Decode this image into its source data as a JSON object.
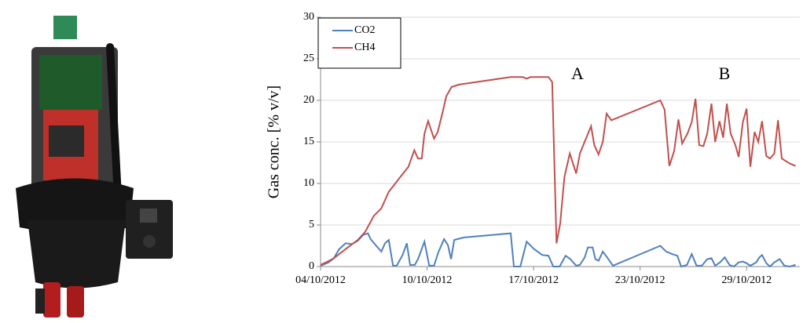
{
  "chart_data": {
    "type": "line",
    "ylabel": "Gas conc.  [% v/v]",
    "annotations": [
      "A",
      "B"
    ],
    "xlim": [
      0,
      90
    ],
    "xticks": [
      {
        "value": 0,
        "label": "04/10/2012"
      },
      {
        "value": 20,
        "label": "10/10/2012"
      },
      {
        "value": 40,
        "label": "17/10/2012"
      },
      {
        "value": 60,
        "label": "23/10/2012"
      },
      {
        "value": 80,
        "label": "29/10/2012"
      }
    ],
    "ylim": [
      0,
      30
    ],
    "yticks": [
      0,
      5,
      10,
      15,
      20,
      25,
      30
    ],
    "grid": true,
    "legend": "top-left",
    "series": [
      {
        "name": "CO2",
        "color": "#4f81bd",
        "x": [
          0,
          1.5,
          2.5,
          3.5,
          4.7,
          5.9,
          7,
          8,
          8.9,
          9.4,
          10.6,
          11.4,
          12.1,
          12.8,
          13.6,
          14.3,
          15.4,
          16.2,
          16.8,
          17.7,
          18.3,
          19.5,
          20.4,
          21.3,
          22.1,
          23.2,
          23.9,
          24.5,
          25.1,
          26.9,
          35.7,
          36.3,
          37.5,
          38.7,
          40.1,
          41.6,
          42.8,
          43.7,
          44.9,
          46,
          46.9,
          48,
          48.7,
          49.6,
          50.2,
          51.1,
          51.6,
          52.2,
          53,
          53.7,
          54.9,
          63.8,
          64.9,
          66,
          67,
          67.7,
          68.8,
          69.7,
          70.6,
          71.6,
          72.6,
          73.4,
          74.1,
          75,
          75.9,
          76.8,
          77.6,
          78.5,
          79.3,
          80,
          80.7,
          81.8,
          82.4,
          82.9,
          83.7,
          84.4,
          85.2,
          86.2,
          87.1,
          88.1,
          89.2
        ],
        "values": [
          0.1,
          0.5,
          1.0,
          2.1,
          2.8,
          2.7,
          3.1,
          3.8,
          4,
          3.3,
          2.4,
          1.8,
          2.8,
          3.2,
          0.1,
          0.1,
          1.4,
          2.8,
          0.2,
          0.2,
          0.9,
          3,
          0.1,
          0.1,
          1.7,
          3.3,
          2.6,
          0.9,
          3.2,
          3.5,
          4,
          0,
          0,
          3,
          2.1,
          1.4,
          1.3,
          0,
          0,
          1.3,
          0.9,
          0.1,
          0.2,
          1.1,
          2.3,
          2.3,
          0.9,
          0.7,
          1.8,
          1.2,
          0.1,
          2.5,
          1.8,
          1.5,
          1.3,
          0,
          0.2,
          1.5,
          0.1,
          0.1,
          0.9,
          1,
          0.1,
          0.5,
          1.1,
          0.2,
          0,
          0.5,
          0.6,
          0.4,
          0.1,
          0.5,
          1.1,
          1.4,
          0.4,
          0,
          0.5,
          0.9,
          0.1,
          0,
          0.2
        ]
      },
      {
        "name": "CH4",
        "color": "#c0504d",
        "x": [
          0,
          1,
          2.5,
          4.7,
          7,
          8.4,
          10,
          11.4,
          12.8,
          15,
          16.5,
          17.6,
          18.3,
          19,
          19.5,
          20.2,
          21.3,
          22,
          23,
          23.6,
          24.6,
          26,
          31.3,
          35.7,
          38,
          38.7,
          39.4,
          42.8,
          43.5,
          44.3,
          45,
          45.8,
          46.8,
          48,
          48.7,
          49.7,
          50.8,
          51.4,
          52.2,
          53,
          53.7,
          54.6,
          63.8,
          64.6,
          65.5,
          66.4,
          67.2,
          67.9,
          68.9,
          69.7,
          70.4,
          71.1,
          71.9,
          72.6,
          73.4,
          74.1,
          74.9,
          75.6,
          76.3,
          77,
          77.9,
          78.5,
          79.3,
          80,
          80.7,
          81.5,
          82.2,
          82.9,
          83.7,
          84.4,
          85.2,
          85.9,
          86.6,
          88.1,
          89.2
        ],
        "values": [
          0.2,
          0.5,
          1,
          2.1,
          3.2,
          4.2,
          6.1,
          7,
          9,
          10.8,
          12,
          14,
          13,
          13,
          16,
          17.5,
          15.4,
          16.2,
          18.8,
          20.5,
          21.6,
          21.9,
          22.4,
          22.8,
          22.8,
          22.6,
          22.8,
          22.8,
          22.2,
          2.8,
          5.2,
          10.8,
          13.6,
          11.2,
          13.6,
          15.2,
          16.9,
          14.6,
          13.5,
          15,
          18.4,
          17.6,
          20,
          18.9,
          12.1,
          13.9,
          17.7,
          14.8,
          16,
          17.4,
          20.2,
          14.6,
          14.5,
          16,
          19.6,
          15,
          17.5,
          15.5,
          19.6,
          16,
          14.6,
          13.2,
          17.4,
          19,
          12,
          16.2,
          15,
          17.5,
          13.3,
          13,
          13.6,
          17.6,
          13,
          12.4,
          12.1
        ]
      }
    ]
  }
}
